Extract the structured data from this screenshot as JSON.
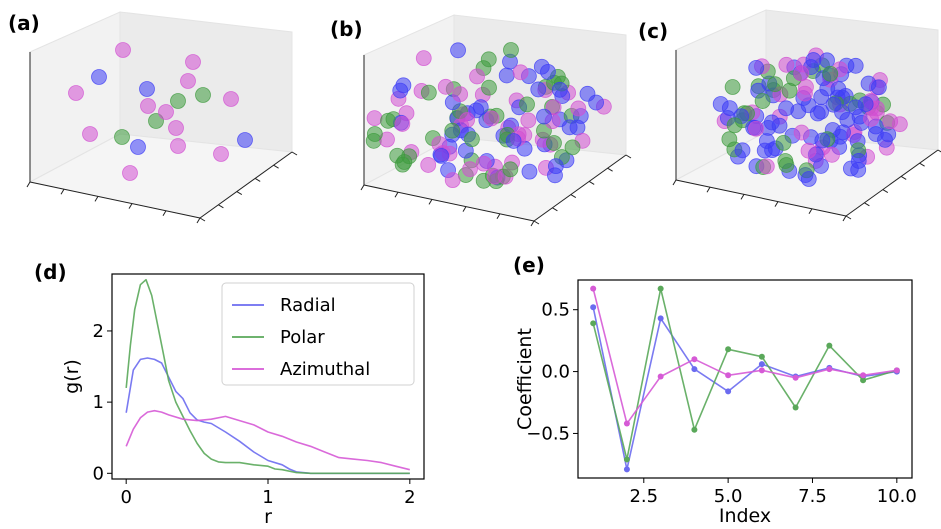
{
  "panel_labels": [
    "(a)",
    "(b)",
    "(c)",
    "(d)",
    "(e)"
  ],
  "colors": {
    "Radial": "#6b6bf0",
    "Polar": "#5aa85a",
    "Azimuthal": "#d65ad6",
    "blue": "#3c3cf5",
    "green": "#3c9a3c",
    "magenta": "#d24fd2"
  },
  "chart_data": [
    {
      "panel": "(a)",
      "type": "scatter",
      "subtype": "3d",
      "points": [
        {
          "c": "magenta",
          "x": 0.38,
          "y": 0.92,
          "z": 0.72
        },
        {
          "c": "magenta",
          "x": 0.62,
          "y": 0.86,
          "z": 0.72
        },
        {
          "c": "blue",
          "x": 0.28,
          "y": 0.8,
          "z": 0.62
        },
        {
          "c": "magenta",
          "x": 0.6,
          "y": 0.74,
          "z": 0.62
        },
        {
          "c": "magenta",
          "x": 0.12,
          "y": 0.68,
          "z": 0.52
        },
        {
          "c": "blue",
          "x": 0.45,
          "y": 0.7,
          "z": 0.52
        },
        {
          "c": "green",
          "x": 0.66,
          "y": 0.64,
          "z": 0.52
        },
        {
          "c": "magenta",
          "x": 0.48,
          "y": 0.56,
          "z": 0.45
        },
        {
          "c": "green",
          "x": 0.52,
          "y": 0.5,
          "z": 0.45
        },
        {
          "c": "magenta",
          "x": 0.8,
          "y": 0.58,
          "z": 0.52
        },
        {
          "c": "green",
          "x": 0.45,
          "y": 0.4,
          "z": 0.4
        },
        {
          "c": "magenta",
          "x": 0.52,
          "y": 0.42,
          "z": 0.35
        },
        {
          "c": "magenta",
          "x": 0.2,
          "y": 0.3,
          "z": 0.3
        },
        {
          "c": "green",
          "x": 0.36,
          "y": 0.3,
          "z": 0.3
        },
        {
          "c": "blue",
          "x": 0.58,
          "y": 0.3,
          "z": 0.3
        },
        {
          "c": "magenta",
          "x": 0.82,
          "y": 0.38,
          "z": 0.35
        },
        {
          "c": "magenta",
          "x": 0.42,
          "y": 0.2,
          "z": 0.25
        },
        {
          "c": "blue",
          "x": 0.72,
          "y": 0.2,
          "z": 0.25
        },
        {
          "c": "magenta",
          "x": 0.3,
          "y": 0.04,
          "z": 0.15
        },
        {
          "c": "magenta",
          "x": 0.68,
          "y": 0.0,
          "z": 0.15
        }
      ]
    },
    {
      "panel": "(b)",
      "type": "scatter",
      "subtype": "3d",
      "description_points": 130
    },
    {
      "panel": "(c)",
      "type": "scatter",
      "subtype": "3d",
      "description_points": 140
    },
    {
      "panel": "(d)",
      "type": "line",
      "xlabel": "r",
      "ylabel": "g(r)",
      "xlim": [
        -0.1,
        2.1
      ],
      "ylim": [
        -0.08,
        2.8
      ],
      "xticks": [
        0,
        1,
        2
      ],
      "yticks": [
        0,
        1,
        2
      ],
      "legend_position": "top-right",
      "series": [
        {
          "name": "Radial",
          "x": [
            0,
            0.05,
            0.1,
            0.15,
            0.2,
            0.25,
            0.3,
            0.35,
            0.4,
            0.45,
            0.5,
            0.55,
            0.6,
            0.7,
            0.8,
            0.9,
            1.0,
            1.1,
            1.15,
            1.2,
            1.3,
            1.5,
            2.0
          ],
          "y": [
            0.85,
            1.45,
            1.6,
            1.62,
            1.6,
            1.55,
            1.35,
            1.15,
            1.05,
            0.85,
            0.75,
            0.72,
            0.7,
            0.58,
            0.45,
            0.3,
            0.18,
            0.12,
            0.06,
            0.02,
            0,
            0,
            0
          ]
        },
        {
          "name": "Polar",
          "x": [
            0,
            0.03,
            0.06,
            0.1,
            0.14,
            0.18,
            0.22,
            0.26,
            0.3,
            0.35,
            0.4,
            0.45,
            0.5,
            0.55,
            0.6,
            0.65,
            0.7,
            0.8,
            0.9,
            1.0,
            1.05,
            1.1,
            1.2,
            1.3,
            1.5,
            2.0
          ],
          "y": [
            1.2,
            1.8,
            2.3,
            2.65,
            2.72,
            2.5,
            2.1,
            1.7,
            1.3,
            1.0,
            0.8,
            0.6,
            0.42,
            0.28,
            0.2,
            0.16,
            0.15,
            0.15,
            0.12,
            0.1,
            0.06,
            0.05,
            0.01,
            0,
            0,
            0
          ]
        },
        {
          "name": "Azimuthal",
          "x": [
            0,
            0.05,
            0.1,
            0.15,
            0.2,
            0.25,
            0.3,
            0.4,
            0.5,
            0.6,
            0.7,
            0.8,
            0.9,
            1.0,
            1.1,
            1.2,
            1.3,
            1.4,
            1.5,
            1.6,
            1.7,
            1.8,
            1.9,
            2.0
          ],
          "y": [
            0.38,
            0.62,
            0.78,
            0.86,
            0.88,
            0.86,
            0.82,
            0.76,
            0.74,
            0.76,
            0.8,
            0.74,
            0.68,
            0.58,
            0.52,
            0.44,
            0.38,
            0.3,
            0.22,
            0.2,
            0.18,
            0.15,
            0.1,
            0.05
          ]
        }
      ]
    },
    {
      "panel": "(e)",
      "type": "line",
      "xlabel": "Index",
      "ylabel": "Coefficient",
      "xlim": [
        0.55,
        10.45
      ],
      "ylim": [
        -0.86,
        0.74
      ],
      "xticks": [
        2.5,
        5.0,
        7.5,
        10.0
      ],
      "xtick_labels": [
        "2.5",
        "5.0",
        "7.5",
        "10.0"
      ],
      "yticks": [
        0.5,
        0.0,
        -0.5
      ],
      "ytick_labels": [
        "0.5",
        "0.0",
        "−0.5"
      ],
      "series": [
        {
          "name": "Radial",
          "x": [
            1,
            2,
            3,
            4,
            5,
            6,
            7,
            8,
            9,
            10
          ],
          "y": [
            0.52,
            -0.79,
            0.43,
            0.02,
            -0.16,
            0.06,
            -0.04,
            0.03,
            -0.04,
            0.0
          ]
        },
        {
          "name": "Polar",
          "x": [
            1,
            2,
            3,
            4,
            5,
            6,
            7,
            8,
            9,
            10
          ],
          "y": [
            0.39,
            -0.71,
            0.67,
            -0.47,
            0.18,
            0.12,
            -0.29,
            0.21,
            -0.07,
            0.01
          ]
        },
        {
          "name": "Azimuthal",
          "x": [
            1,
            2,
            3,
            4,
            5,
            6,
            7,
            8,
            9,
            10
          ],
          "y": [
            0.67,
            -0.42,
            -0.04,
            0.1,
            -0.03,
            0.01,
            -0.05,
            0.02,
            -0.03,
            0.01
          ]
        }
      ]
    }
  ]
}
